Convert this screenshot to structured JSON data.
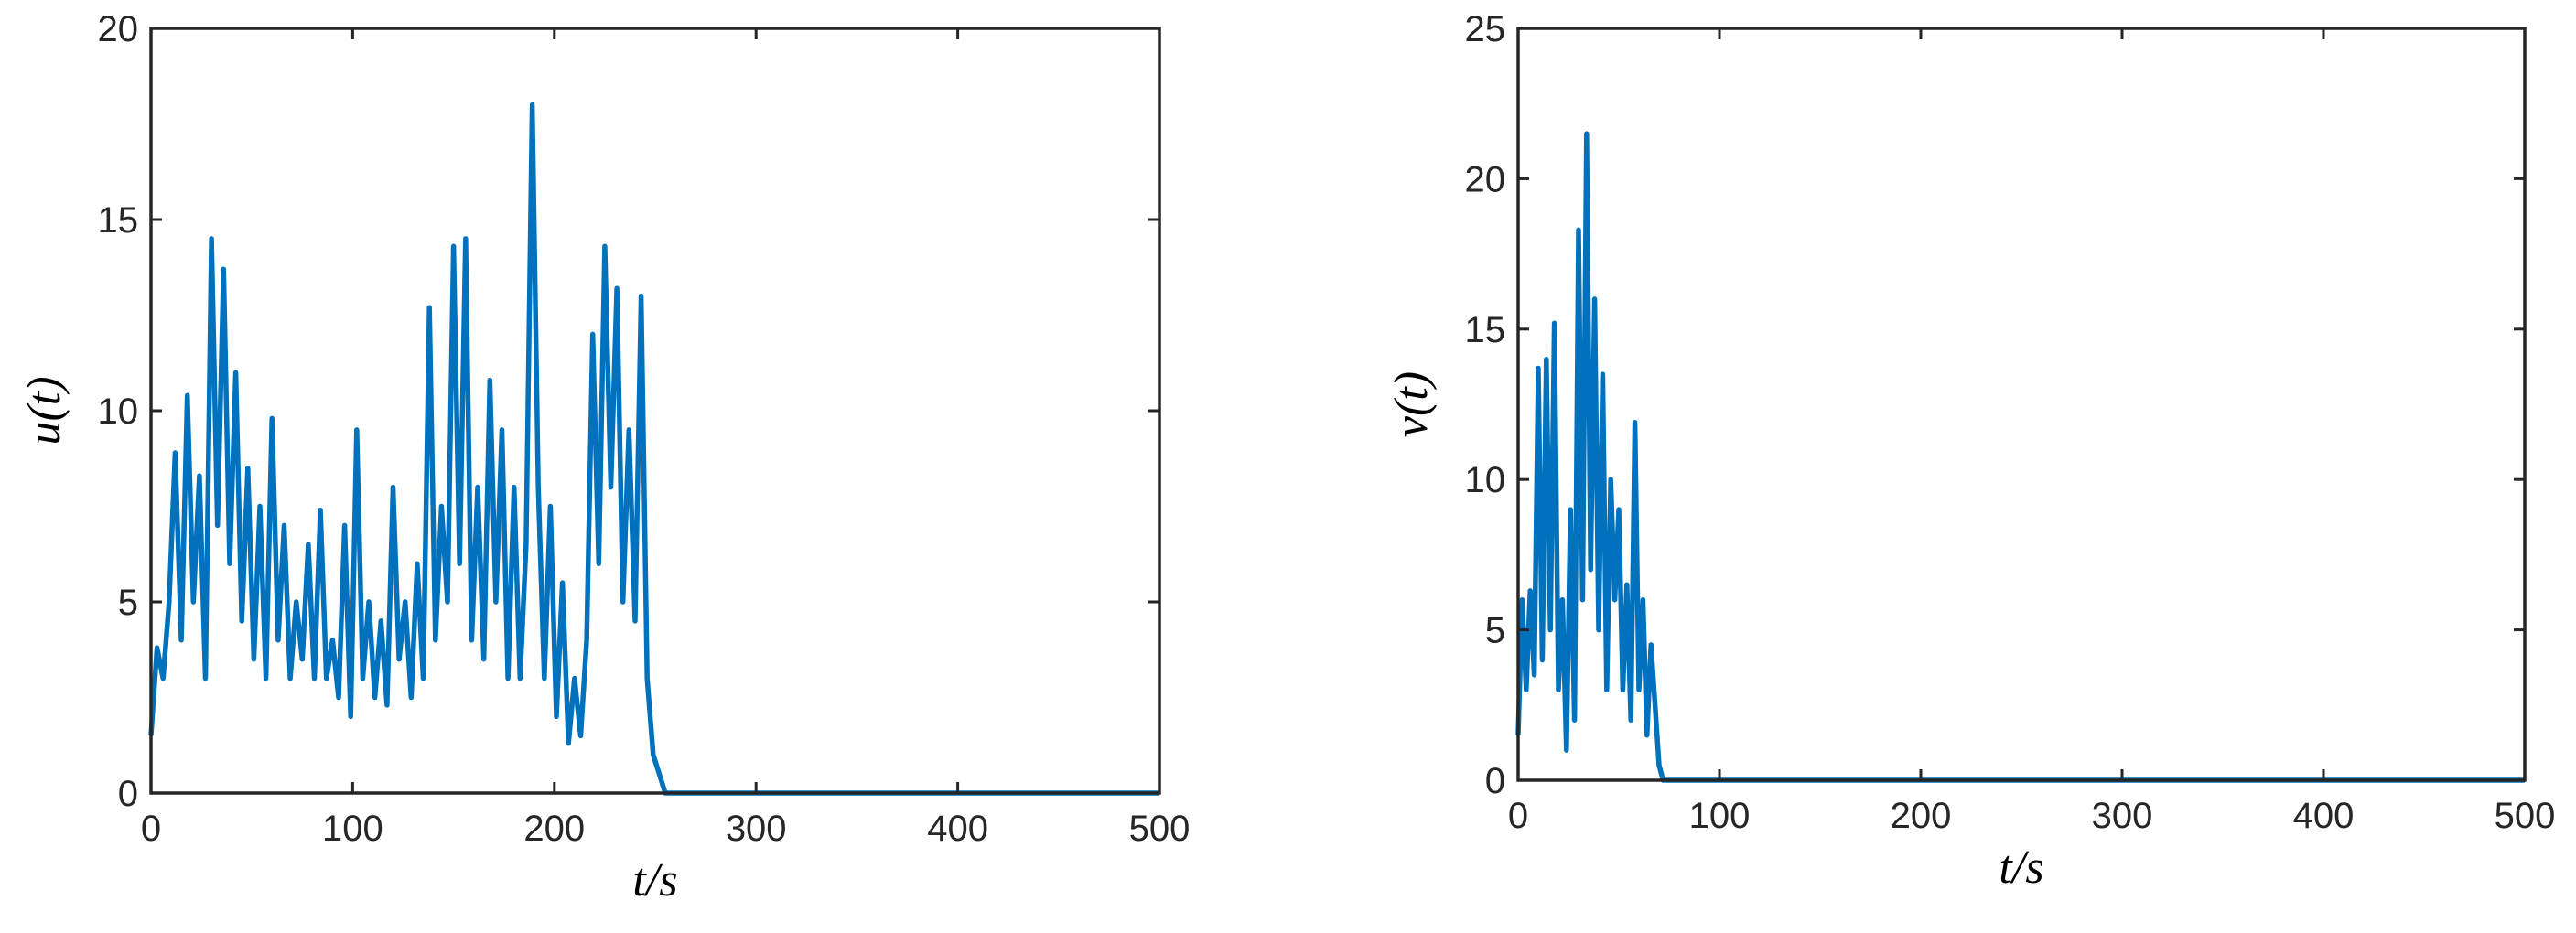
{
  "chart_data": [
    {
      "type": "line",
      "xlabel": "t/s",
      "ylabel": "u(t)",
      "xlim": [
        0,
        500
      ],
      "xticks": [
        0,
        100,
        200,
        300,
        400,
        500
      ],
      "ylim": [
        0,
        20
      ],
      "yticks": [
        0,
        5,
        10,
        15,
        20
      ],
      "x": [
        0,
        3,
        6,
        9,
        12,
        15,
        18,
        21,
        24,
        27,
        30,
        33,
        36,
        39,
        42,
        45,
        48,
        51,
        54,
        57,
        60,
        63,
        66,
        69,
        72,
        75,
        78,
        81,
        84,
        87,
        90,
        93,
        96,
        99,
        102,
        105,
        108,
        111,
        114,
        117,
        120,
        123,
        126,
        129,
        132,
        135,
        138,
        141,
        144,
        147,
        150,
        153,
        156,
        159,
        162,
        165,
        168,
        171,
        174,
        177,
        180,
        183,
        186,
        189,
        192,
        195,
        198,
        201,
        204,
        207,
        210,
        213,
        216,
        219,
        222,
        225,
        228,
        231,
        234,
        237,
        240,
        243,
        246,
        249,
        252,
        255,
        500
      ],
      "series": [
        {
          "color": "#0072bd",
          "values": [
            1.5,
            3.8,
            3,
            5,
            8.9,
            4,
            10.4,
            5,
            8.3,
            3,
            14.5,
            7,
            13.7,
            6,
            11,
            4.5,
            8.5,
            3.5,
            7.5,
            3,
            9.8,
            4,
            7,
            3,
            5,
            3.5,
            6.5,
            3,
            7.4,
            3,
            4,
            2.5,
            7,
            2,
            9.5,
            3,
            5,
            2.5,
            4.5,
            2.3,
            8,
            3.5,
            5,
            2.5,
            6,
            3,
            12.7,
            4,
            7.5,
            5,
            14.3,
            6,
            14.5,
            4,
            8,
            3.5,
            10.8,
            5,
            9.5,
            3,
            8,
            3,
            6.5,
            18,
            8,
            3,
            7.5,
            2,
            5.5,
            1.3,
            3,
            1.5,
            4,
            12,
            6,
            14.3,
            8,
            13.2,
            5,
            9.5,
            4.5,
            13,
            3,
            1,
            0.5,
            0,
            0
          ]
        }
      ]
    },
    {
      "type": "line",
      "xlabel": "t/s",
      "ylabel": "v(t)",
      "xlim": [
        0,
        500
      ],
      "xticks": [
        0,
        100,
        200,
        300,
        400,
        500
      ],
      "ylim": [
        0,
        25
      ],
      "yticks": [
        0,
        5,
        10,
        15,
        20,
        25
      ],
      "x": [
        0,
        2,
        4,
        6,
        8,
        10,
        12,
        14,
        16,
        18,
        20,
        22,
        24,
        26,
        28,
        30,
        32,
        34,
        36,
        38,
        40,
        42,
        44,
        46,
        48,
        50,
        52,
        54,
        56,
        58,
        60,
        62,
        64,
        66,
        68,
        70,
        72,
        500
      ],
      "series": [
        {
          "color": "#0072bd",
          "values": [
            1.5,
            6,
            3,
            6.3,
            3.5,
            13.7,
            4,
            14,
            5,
            15.2,
            3,
            6,
            1,
            9,
            2,
            18.3,
            6,
            21.5,
            7,
            16,
            5,
            13.5,
            3,
            10,
            6,
            9,
            3,
            6.5,
            2,
            11.9,
            3,
            6,
            1.5,
            4.5,
            2.5,
            0.5,
            0,
            0
          ]
        }
      ]
    }
  ]
}
